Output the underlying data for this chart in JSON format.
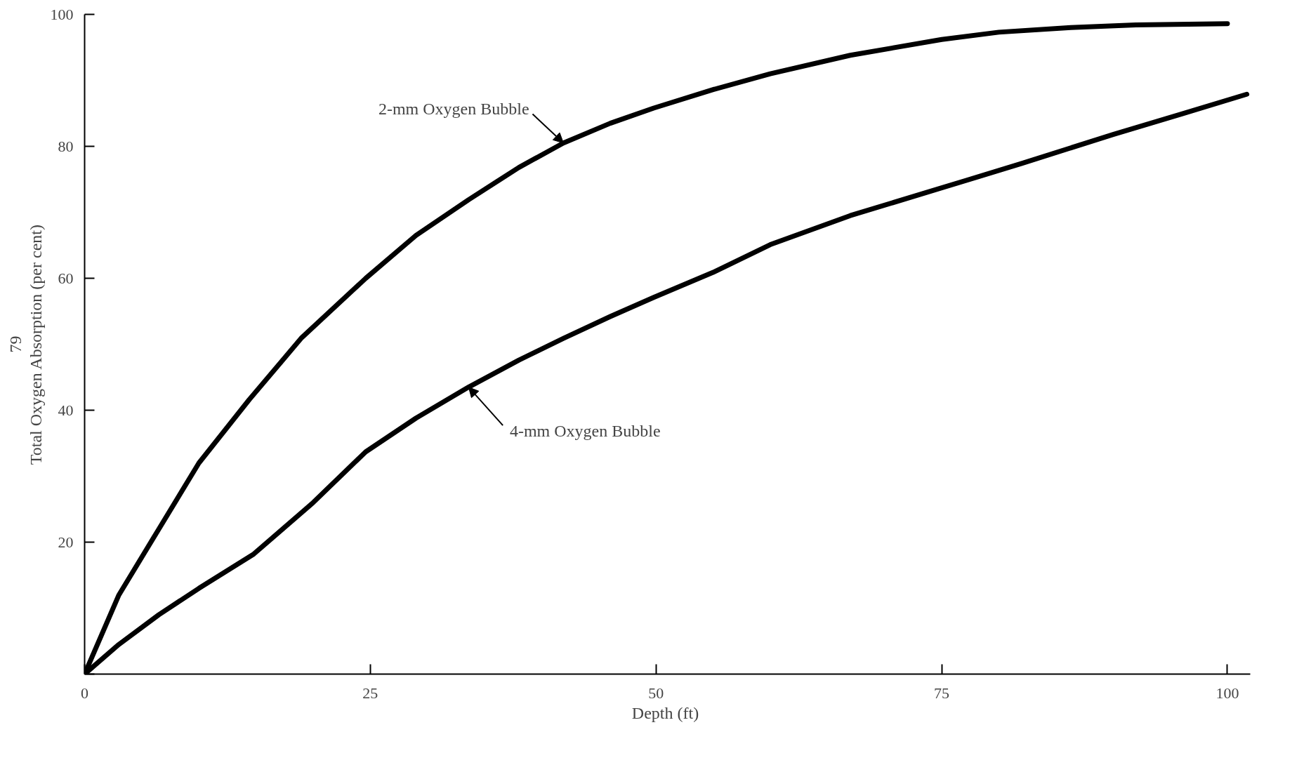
{
  "chart_data": {
    "type": "line",
    "xlabel": "Depth  (ft)",
    "ylabel": "Total Oxygen Absorption (per cent)",
    "xlim": [
      0,
      102
    ],
    "ylim": [
      0,
      100
    ],
    "xticks": [
      0,
      25,
      50,
      75,
      100
    ],
    "yticks": [
      {
        "value": 0,
        "label": null
      },
      20,
      40,
      60,
      80,
      100
    ],
    "grid": false,
    "marker": "none",
    "line_style": "solid",
    "series": [
      {
        "name": "2-mm Oxygen Bubble",
        "color": "#000000",
        "x": [
          0,
          3,
          6.5,
          10,
          14.4,
          19,
          24.6,
          29,
          33.6,
          38,
          41.9,
          46,
          49.8,
          55,
          60,
          67,
          75,
          80,
          86.3,
          92,
          100
        ],
        "values": [
          0,
          12,
          22,
          32,
          41.6,
          51,
          60,
          66.5,
          71.9,
          76.8,
          80.5,
          83.5,
          85.8,
          88.6,
          91,
          93.8,
          96.2,
          97.3,
          98,
          98.4,
          98.6
        ]
      },
      {
        "name": "4-mm Oxygen Bubble",
        "color": "#000000",
        "x": [
          0,
          3,
          6.5,
          10,
          14.8,
          20,
          24.6,
          29,
          33.6,
          38,
          41.9,
          46,
          49.8,
          55,
          60,
          67,
          75,
          82,
          90,
          96,
          101.7
        ],
        "values": [
          0,
          4.5,
          9,
          13,
          18.2,
          26,
          33.7,
          38.8,
          43.5,
          47.6,
          50.9,
          54.2,
          57.1,
          60.9,
          65.1,
          69.5,
          73.7,
          77.4,
          81.8,
          84.9,
          87.9
        ]
      }
    ],
    "annotations": [
      "79"
    ]
  }
}
